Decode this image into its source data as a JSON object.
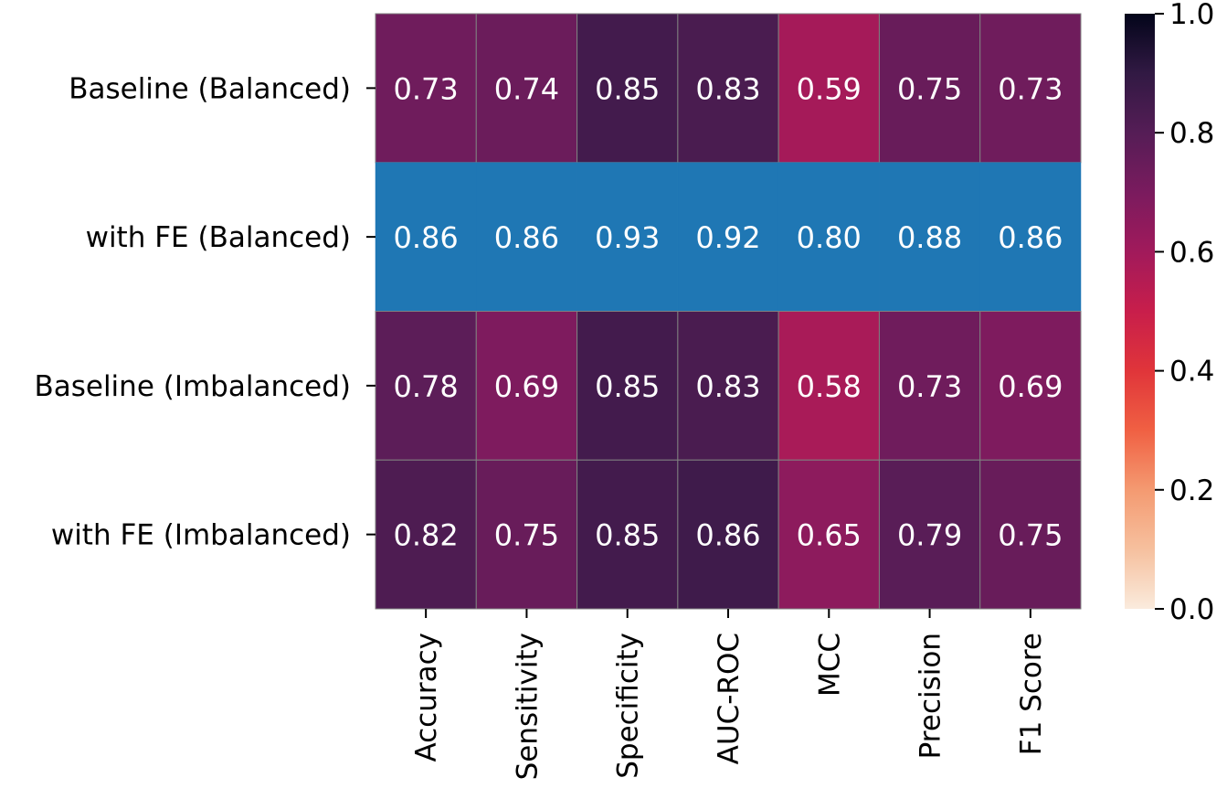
{
  "chart_data": {
    "type": "heatmap",
    "title": "",
    "xlabel": "",
    "ylabel": "",
    "rows": [
      "Baseline (Balanced)",
      "with FE (Balanced)",
      "Baseline (Imbalanced)",
      "with FE (Imbalanced)"
    ],
    "columns": [
      "Accuracy",
      "Sensitivity",
      "Specificity",
      "AUC-ROC",
      "MCC",
      "Precision",
      "F1 Score"
    ],
    "values": [
      [
        0.73,
        0.74,
        0.85,
        0.83,
        0.59,
        0.75,
        0.73
      ],
      [
        0.86,
        0.86,
        0.93,
        0.92,
        0.8,
        0.88,
        0.86
      ],
      [
        0.78,
        0.69,
        0.85,
        0.83,
        0.58,
        0.73,
        0.69
      ],
      [
        0.82,
        0.75,
        0.85,
        0.86,
        0.65,
        0.79,
        0.75
      ]
    ],
    "value_labels": [
      [
        "0.73",
        "0.74",
        "0.85",
        "0.83",
        "0.59",
        "0.75",
        "0.73"
      ],
      [
        "0.86",
        "0.86",
        "0.93",
        "0.92",
        "0.80",
        "0.88",
        "0.86"
      ],
      [
        "0.78",
        "0.69",
        "0.85",
        "0.83",
        "0.58",
        "0.73",
        "0.69"
      ],
      [
        "0.82",
        "0.75",
        "0.85",
        "0.86",
        "0.65",
        "0.79",
        "0.75"
      ]
    ],
    "highlighted_row": 1,
    "highlight_color": "#1f77b4",
    "colormap": "rocket_r",
    "color_range": [
      0.0,
      1.0
    ],
    "colorbar_ticks": [
      "0.0",
      "0.2",
      "0.4",
      "0.6",
      "0.8",
      "1.0"
    ],
    "grid": true,
    "grid_color": "#808080",
    "legend": "colorbar-right"
  }
}
